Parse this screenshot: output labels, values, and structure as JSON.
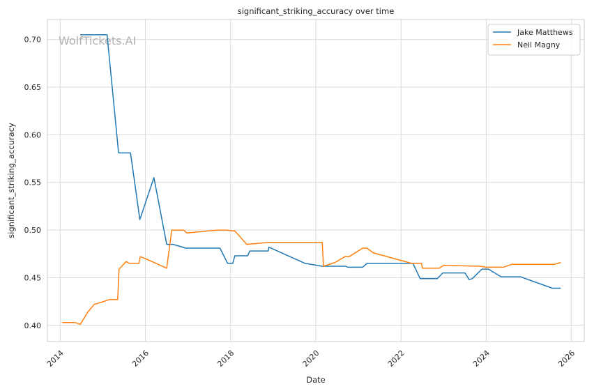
{
  "chart_data": {
    "type": "line",
    "title": "significant_striking_accuracy over time",
    "xlabel": "Date",
    "ylabel": "significant_striking_accuracy",
    "watermark": "WolfTickets.AI",
    "xlim": [
      2013.7,
      2026.3
    ],
    "ylim": [
      0.383,
      0.721
    ],
    "x_ticks": [
      2014,
      2016,
      2018,
      2020,
      2022,
      2024,
      2026
    ],
    "y_ticks": [
      0.4,
      0.45,
      0.5,
      0.55,
      0.6,
      0.65,
      0.7
    ],
    "y_tick_labels": [
      "0.40",
      "0.45",
      "0.50",
      "0.55",
      "0.60",
      "0.65",
      "0.70"
    ],
    "grid": true,
    "legend_position": "top-right",
    "series": [
      {
        "name": "Jake Matthews",
        "color": "#1f77b4",
        "points": [
          [
            2014.47,
            0.705
          ],
          [
            2015.1,
            0.705
          ],
          [
            2015.37,
            0.581
          ],
          [
            2015.65,
            0.581
          ],
          [
            2015.87,
            0.511
          ],
          [
            2016.2,
            0.555
          ],
          [
            2016.5,
            0.485
          ],
          [
            2016.65,
            0.485
          ],
          [
            2016.95,
            0.481
          ],
          [
            2017.75,
            0.481
          ],
          [
            2017.93,
            0.465
          ],
          [
            2018.05,
            0.465
          ],
          [
            2018.1,
            0.473
          ],
          [
            2018.4,
            0.473
          ],
          [
            2018.45,
            0.478
          ],
          [
            2018.88,
            0.478
          ],
          [
            2018.9,
            0.482
          ],
          [
            2019.75,
            0.465
          ],
          [
            2020.15,
            0.462
          ],
          [
            2020.7,
            0.462
          ],
          [
            2020.75,
            0.461
          ],
          [
            2021.1,
            0.461
          ],
          [
            2021.2,
            0.465
          ],
          [
            2022.28,
            0.465
          ],
          [
            2022.45,
            0.449
          ],
          [
            2022.85,
            0.449
          ],
          [
            2022.98,
            0.455
          ],
          [
            2023.5,
            0.455
          ],
          [
            2023.6,
            0.448
          ],
          [
            2023.67,
            0.449
          ],
          [
            2023.9,
            0.459
          ],
          [
            2024.05,
            0.459
          ],
          [
            2024.35,
            0.451
          ],
          [
            2024.8,
            0.451
          ],
          [
            2025.55,
            0.439
          ],
          [
            2025.75,
            0.439
          ]
        ]
      },
      {
        "name": "Neil Magny",
        "color": "#ff7f0e",
        "points": [
          [
            2014.05,
            0.403
          ],
          [
            2014.35,
            0.403
          ],
          [
            2014.47,
            0.401
          ],
          [
            2014.65,
            0.414
          ],
          [
            2014.8,
            0.422
          ],
          [
            2014.95,
            0.424
          ],
          [
            2015.15,
            0.427
          ],
          [
            2015.35,
            0.427
          ],
          [
            2015.38,
            0.459
          ],
          [
            2015.55,
            0.467
          ],
          [
            2015.62,
            0.465
          ],
          [
            2015.85,
            0.465
          ],
          [
            2015.88,
            0.472
          ],
          [
            2016.0,
            0.47
          ],
          [
            2016.5,
            0.46
          ],
          [
            2016.62,
            0.5
          ],
          [
            2016.9,
            0.5
          ],
          [
            2016.97,
            0.497
          ],
          [
            2017.7,
            0.5
          ],
          [
            2017.9,
            0.5
          ],
          [
            2018.05,
            0.499
          ],
          [
            2018.1,
            0.499
          ],
          [
            2018.38,
            0.485
          ],
          [
            2018.9,
            0.487
          ],
          [
            2020.15,
            0.487
          ],
          [
            2020.18,
            0.462
          ],
          [
            2020.45,
            0.466
          ],
          [
            2020.68,
            0.472
          ],
          [
            2020.78,
            0.472
          ],
          [
            2021.1,
            0.481
          ],
          [
            2021.2,
            0.481
          ],
          [
            2021.35,
            0.476
          ],
          [
            2022.25,
            0.465
          ],
          [
            2022.48,
            0.465
          ],
          [
            2022.5,
            0.46
          ],
          [
            2022.9,
            0.46
          ],
          [
            2023.0,
            0.463
          ],
          [
            2023.85,
            0.462
          ],
          [
            2024.0,
            0.461
          ],
          [
            2024.4,
            0.461
          ],
          [
            2024.6,
            0.464
          ],
          [
            2025.6,
            0.464
          ],
          [
            2025.75,
            0.466
          ]
        ]
      }
    ]
  }
}
